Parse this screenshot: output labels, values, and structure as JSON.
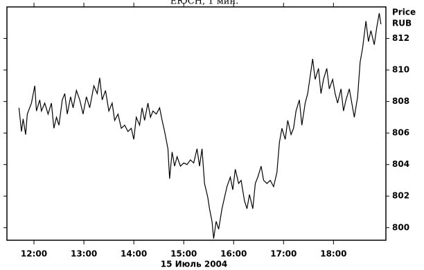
{
  "chart_data": {
    "type": "line",
    "title": "ЕЮСН, 1 мин.",
    "x_label": "15 Июль 2004",
    "y_label": [
      "Price",
      "RUB"
    ],
    "color": "#000000",
    "xlim": [
      687.5,
      1143
    ],
    "ylim": [
      799.2,
      814
    ],
    "xticks": [
      {
        "value": 720,
        "label": "12:00"
      },
      {
        "value": 780,
        "label": "13:00"
      },
      {
        "value": 840,
        "label": "14:00"
      },
      {
        "value": 900,
        "label": "15:00"
      },
      {
        "value": 960,
        "label": "16:00"
      },
      {
        "value": 1020,
        "label": "17:00"
      },
      {
        "value": 1080,
        "label": "18:00"
      }
    ],
    "yticks": [
      800,
      802,
      804,
      806,
      808,
      810,
      812
    ],
    "x": [
      702,
      705,
      707,
      710,
      712,
      717,
      721,
      723,
      727,
      729,
      733,
      737,
      741,
      744,
      747,
      750,
      754,
      757,
      760,
      764,
      767,
      771,
      775,
      779,
      783,
      787,
      792,
      796,
      799,
      802,
      806,
      810,
      814,
      817,
      821,
      825,
      829,
      833,
      837,
      840,
      843,
      847,
      850,
      853,
      857,
      860,
      863,
      867,
      871,
      874,
      877,
      881,
      883,
      886,
      889,
      892,
      896,
      900,
      904,
      908,
      912,
      916,
      919,
      922,
      925,
      929,
      931,
      934,
      936,
      939,
      942,
      946,
      949,
      952,
      956,
      959,
      962,
      966,
      969,
      973,
      976,
      979,
      983,
      986,
      989,
      993,
      996,
      1000,
      1004,
      1008,
      1012,
      1015,
      1018,
      1022,
      1025,
      1029,
      1032,
      1035,
      1039,
      1042,
      1046,
      1049,
      1052,
      1055,
      1058,
      1062,
      1065,
      1068,
      1072,
      1075,
      1079,
      1082,
      1085,
      1089,
      1092,
      1095,
      1099,
      1102,
      1105,
      1109,
      1112,
      1115,
      1119,
      1122,
      1125,
      1129,
      1132,
      1135,
      1137
    ],
    "values": [
      807.6,
      806.1,
      806.9,
      805.9,
      807.2,
      807.9,
      809.0,
      807.4,
      808.1,
      807.4,
      807.9,
      807.2,
      807.9,
      806.3,
      807.0,
      806.5,
      808.1,
      808.5,
      807.2,
      808.3,
      807.6,
      808.7,
      808.1,
      807.2,
      808.3,
      807.6,
      809.0,
      808.5,
      809.5,
      808.1,
      808.7,
      807.4,
      807.9,
      806.8,
      807.2,
      806.3,
      806.5,
      806.1,
      806.3,
      805.6,
      807.0,
      806.5,
      807.6,
      806.8,
      807.9,
      807.0,
      807.4,
      807.2,
      807.6,
      806.8,
      806.1,
      805.0,
      803.1,
      804.8,
      803.9,
      804.5,
      803.9,
      804.1,
      804.0,
      804.3,
      804.1,
      805.0,
      803.9,
      805.0,
      802.8,
      801.9,
      801.2,
      800.4,
      799.3,
      800.4,
      799.9,
      801.2,
      801.9,
      802.6,
      803.2,
      802.4,
      803.7,
      802.8,
      803.0,
      801.7,
      801.2,
      802.1,
      801.2,
      802.8,
      803.2,
      803.9,
      803.0,
      802.8,
      803.0,
      802.6,
      803.5,
      805.4,
      806.3,
      805.6,
      806.8,
      805.9,
      806.3,
      807.4,
      808.1,
      806.5,
      807.9,
      808.5,
      809.6,
      810.7,
      809.4,
      810.1,
      808.5,
      809.4,
      810.1,
      808.8,
      809.4,
      808.5,
      807.9,
      808.8,
      807.4,
      808.1,
      808.8,
      807.9,
      807.0,
      808.3,
      810.5,
      811.4,
      813.1,
      811.8,
      812.5,
      811.6,
      812.7,
      813.6,
      812.9
    ]
  }
}
